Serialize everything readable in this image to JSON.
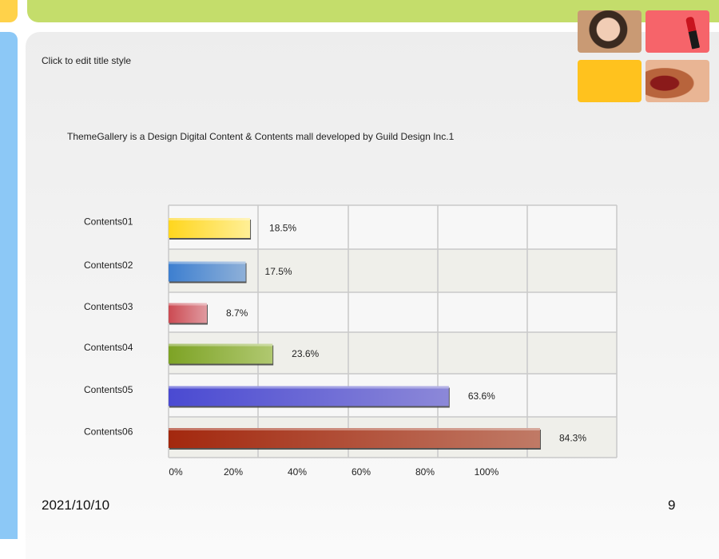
{
  "slide": {
    "title": "Click to edit title style",
    "subtitle": "ThemeGallery  is a Design Digital Content & Contents mall developed by Guild Design Inc.1",
    "date": "2021/10/10",
    "page": "9"
  },
  "colors": {
    "top_bar": "#c4dd6b",
    "left_bar": "#8cc8f6",
    "corner": "#ffd24a"
  },
  "chart_data": {
    "type": "bar",
    "orientation": "horizontal",
    "categories": [
      "Contents01",
      "Contents02",
      "Contents03",
      "Contents04",
      "Contents05",
      "Contents06"
    ],
    "values": [
      18.5,
      17.5,
      8.7,
      23.6,
      63.6,
      84.3
    ],
    "value_labels": [
      "18.5%",
      "17.5%",
      "8.7%",
      "23.6%",
      "63.6%",
      "84.3%"
    ],
    "bar_colors": [
      [
        "#ffd61e",
        "#ffef96"
      ],
      [
        "#3d7fd0",
        "#8eb0d8"
      ],
      [
        "#cc4a52",
        "#e09aa0"
      ],
      [
        "#7da325",
        "#b0c870"
      ],
      [
        "#4a4ad2",
        "#8c88d8"
      ],
      [
        "#a3280e",
        "#c07a66"
      ]
    ],
    "xticks": [
      "0%",
      "20%",
      "40%",
      "60%",
      "80%",
      "100%"
    ],
    "xlim": [
      0,
      100
    ],
    "grid": true,
    "title": "",
    "xlabel": "",
    "ylabel": ""
  }
}
